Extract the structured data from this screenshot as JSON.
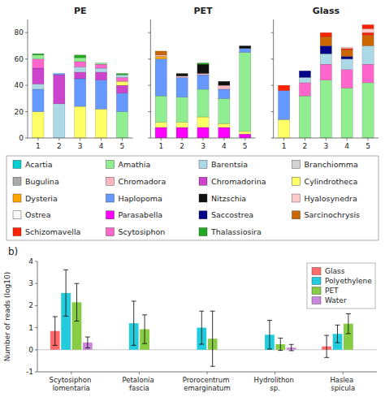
{
  "chart_data": [
    {
      "type": "bar",
      "stacked": true,
      "title": "PE",
      "categories": [
        "1",
        "2",
        "3",
        "4",
        "5"
      ],
      "values": [
        [
          20,
          17,
          4,
          12,
          7,
          3,
          1
        ],
        [
          26,
          22,
          1
        ],
        [
          24,
          21,
          5,
          4,
          4,
          3,
          2
        ],
        [
          22,
          22,
          6,
          3,
          3,
          1
        ],
        [
          20,
          14,
          6,
          3,
          3,
          2,
          1
        ]
      ],
      "colors": [
        [
          "#FFFF66",
          "#6699FF",
          "#ADD8E6",
          "#CC44CC",
          "#FF66CC",
          "#90EE90",
          "#22AA22"
        ],
        [
          "#ADD8E6",
          "#CC44CC",
          "#6699FF"
        ],
        [
          "#FFFF66",
          "#6699FF",
          "#CC44CC",
          "#ADD8E6",
          "#FF66CC",
          "#90EE90",
          "#22AA22"
        ],
        [
          "#FFFF66",
          "#6699FF",
          "#CC44CC",
          "#ADD8E6",
          "#FF66CC",
          "#90EE90"
        ],
        [
          "#90EE90",
          "#6699FF",
          "#CC44CC",
          "#FFFF66",
          "#FF66CC",
          "#ADD8E6",
          "#22AA22"
        ]
      ],
      "ylim": [
        0,
        90
      ],
      "yticks": [
        0,
        20,
        40,
        60,
        80
      ]
    },
    {
      "type": "bar",
      "stacked": true,
      "title": "PET",
      "categories": [
        "1",
        "2",
        "3",
        "4",
        "5"
      ],
      "values": [
        [
          8,
          4,
          20,
          28,
          2,
          1,
          3
        ],
        [
          8,
          4,
          19,
          15,
          1,
          2
        ],
        [
          8,
          8,
          21,
          11,
          1,
          7,
          1
        ],
        [
          8,
          3,
          19,
          7,
          3,
          3
        ],
        [
          3,
          2,
          60,
          3,
          2
        ]
      ],
      "colors": [
        [
          "#FF00FF",
          "#FFFF66",
          "#90EE90",
          "#6699FF",
          "#FFA500",
          "#FFB6C1",
          "#CC6600"
        ],
        [
          "#FF00FF",
          "#FFFF66",
          "#90EE90",
          "#6699FF",
          "#FFB6C1",
          "#111111"
        ],
        [
          "#FF00FF",
          "#FFFF66",
          "#90EE90",
          "#6699FF",
          "#FFB6C1",
          "#111111",
          "#22AA22"
        ],
        [
          "#FF00FF",
          "#FFFF66",
          "#90EE90",
          "#6699FF",
          "#FFB6C1",
          "#111111"
        ],
        [
          "#FF00FF",
          "#FFFF66",
          "#90EE90",
          "#6699FF",
          "#111111"
        ]
      ],
      "ylim": [
        0,
        90
      ],
      "yticks": [
        0,
        20,
        40,
        60,
        80
      ],
      "tick_labels": "x"
    },
    {
      "type": "bar",
      "stacked": true,
      "title": "Glass",
      "categories": [
        "1",
        "2",
        "3",
        "4",
        "5"
      ],
      "values": [
        [
          14,
          22,
          4
        ],
        [
          32,
          10,
          4,
          5
        ],
        [
          44,
          12,
          8,
          6,
          7,
          3
        ],
        [
          38,
          14,
          8,
          2,
          5,
          1,
          1
        ],
        [
          42,
          14,
          14,
          8,
          2,
          3,
          3
        ]
      ],
      "colors": [
        [
          "#FFFF66",
          "#6699FF",
          "#FF2200"
        ],
        [
          "#90EE90",
          "#FF66CC",
          "#ADD8E6",
          "#000088"
        ],
        [
          "#90EE90",
          "#FF66CC",
          "#ADD8E6",
          "#000088",
          "#CC6600",
          "#FF2200"
        ],
        [
          "#90EE90",
          "#FF66CC",
          "#ADD8E6",
          "#000088",
          "#CC6600",
          "#FF2200",
          "#FFCCCC"
        ],
        [
          "#90EE90",
          "#FF66CC",
          "#ADD8E6",
          "#CC6600",
          "#FF2200",
          "#FFCCCC",
          "#FF2200"
        ]
      ],
      "ylim": [
        0,
        90
      ],
      "yticks": [
        0,
        20,
        40,
        60,
        80
      ],
      "tick_labels": "x"
    },
    {
      "type": "legend",
      "series": [
        {
          "name": "Acartia",
          "color": "#00CED1"
        },
        {
          "name": "Amathia",
          "color": "#90EE90"
        },
        {
          "name": "Barentsia",
          "color": "#ADD8E6"
        },
        {
          "name": "Branchiomma",
          "color": "#D3D3D3"
        },
        {
          "name": "Bugulina",
          "color": "#A9A9A9"
        },
        {
          "name": "Chromadora",
          "color": "#FFB6C1"
        },
        {
          "name": "Chromadorina",
          "color": "#CC44CC"
        },
        {
          "name": "Cylindrotheca",
          "color": "#FFFF66"
        },
        {
          "name": "Dysteria",
          "color": "#FFA500"
        },
        {
          "name": "Haplopoma",
          "color": "#6699FF"
        },
        {
          "name": "Nitzschia",
          "color": "#111111"
        },
        {
          "name": "Hyalosynedra",
          "color": "#FFCCCC"
        },
        {
          "name": "Ostrea",
          "color": "#F8F8F8"
        },
        {
          "name": "Parasabella",
          "color": "#FF00FF"
        },
        {
          "name": "Saccostrea",
          "color": "#000088"
        },
        {
          "name": "Sarcinochrysis",
          "color": "#CC6600"
        },
        {
          "name": "Schizomavella",
          "color": "#FF2200"
        },
        {
          "name": "Scytosiphon",
          "color": "#FF66CC"
        },
        {
          "name": "Thalassiosira",
          "color": "#22AA22"
        }
      ]
    },
    {
      "type": "bar",
      "annotations": [
        "b)"
      ],
      "categories": [
        "Scytosiphon lomentaria",
        "Petalonia fascia",
        "Prorocentrum emarginatum",
        "Hydrolithon sp.",
        "Haslea spicula"
      ],
      "series": [
        {
          "name": "Glass",
          "color": "#FF6B6B",
          "values": [
            0.85,
            0.0,
            0.0,
            0.0,
            0.15
          ],
          "errors": [
            0.65,
            0.0,
            0.0,
            0.0,
            0.5
          ]
        },
        {
          "name": "Polyethylene",
          "color": "#22CCDD",
          "values": [
            2.57,
            1.2,
            1.0,
            0.68,
            0.72
          ],
          "errors": [
            1.05,
            1.0,
            0.75,
            0.65,
            0.4
          ]
        },
        {
          "name": "PET",
          "color": "#88CC44",
          "values": [
            2.15,
            0.93,
            0.5,
            0.25,
            1.18
          ],
          "errors": [
            0.85,
            0.65,
            1.25,
            0.28,
            0.45
          ]
        },
        {
          "name": "Water",
          "color": "#CC88DD",
          "values": [
            0.33,
            0.0,
            0.0,
            0.1,
            0.0
          ],
          "errors": [
            0.25,
            0.0,
            0.0,
            0.14,
            0.0
          ]
        }
      ],
      "ylim": [
        -1,
        4
      ],
      "yticks": [
        -1,
        0,
        1,
        2,
        3,
        4
      ],
      "ylabel": "Number of reads (log10)",
      "legend": "upper right"
    }
  ]
}
